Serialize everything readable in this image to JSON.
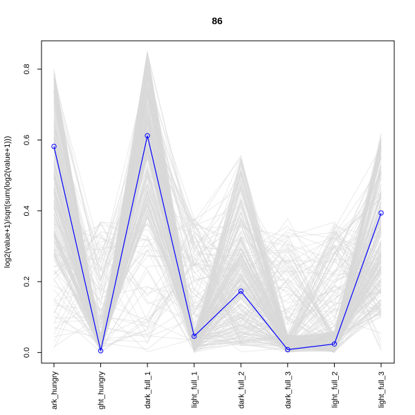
{
  "chart_data": {
    "type": "line",
    "title": "86",
    "ylabel": "log2(value+1)/sqrt(sum(log2(value+1)))",
    "xlabel": "",
    "categories": [
      "dark_hungry",
      "light_hungry",
      "dark_full_1",
      "light_full_1",
      "dark_full_2",
      "dark_full_3",
      "light_full_2",
      "light_full_3"
    ],
    "category_display": [
      "ark_hungry",
      "ght_hungry",
      "dark_full_1",
      "light_full_1",
      "dark_full_2",
      "dark_full_3",
      "light_full_2",
      "light_full_3"
    ],
    "ylim": [
      -0.03,
      0.88
    ],
    "yticks": [
      0.0,
      0.2,
      0.4,
      0.6,
      0.8
    ],
    "ytick_labels": [
      "0.0",
      "0.2",
      "0.4",
      "0.6",
      "0.8"
    ],
    "grid": false,
    "background_series_color": "#d9d9d9",
    "highlight_color": "#0000ff",
    "series": [
      {
        "values": [
          0.582,
          0.005,
          0.612,
          0.046,
          0.173,
          0.008,
          0.024,
          0.394
        ],
        "highlight": true
      }
    ]
  }
}
